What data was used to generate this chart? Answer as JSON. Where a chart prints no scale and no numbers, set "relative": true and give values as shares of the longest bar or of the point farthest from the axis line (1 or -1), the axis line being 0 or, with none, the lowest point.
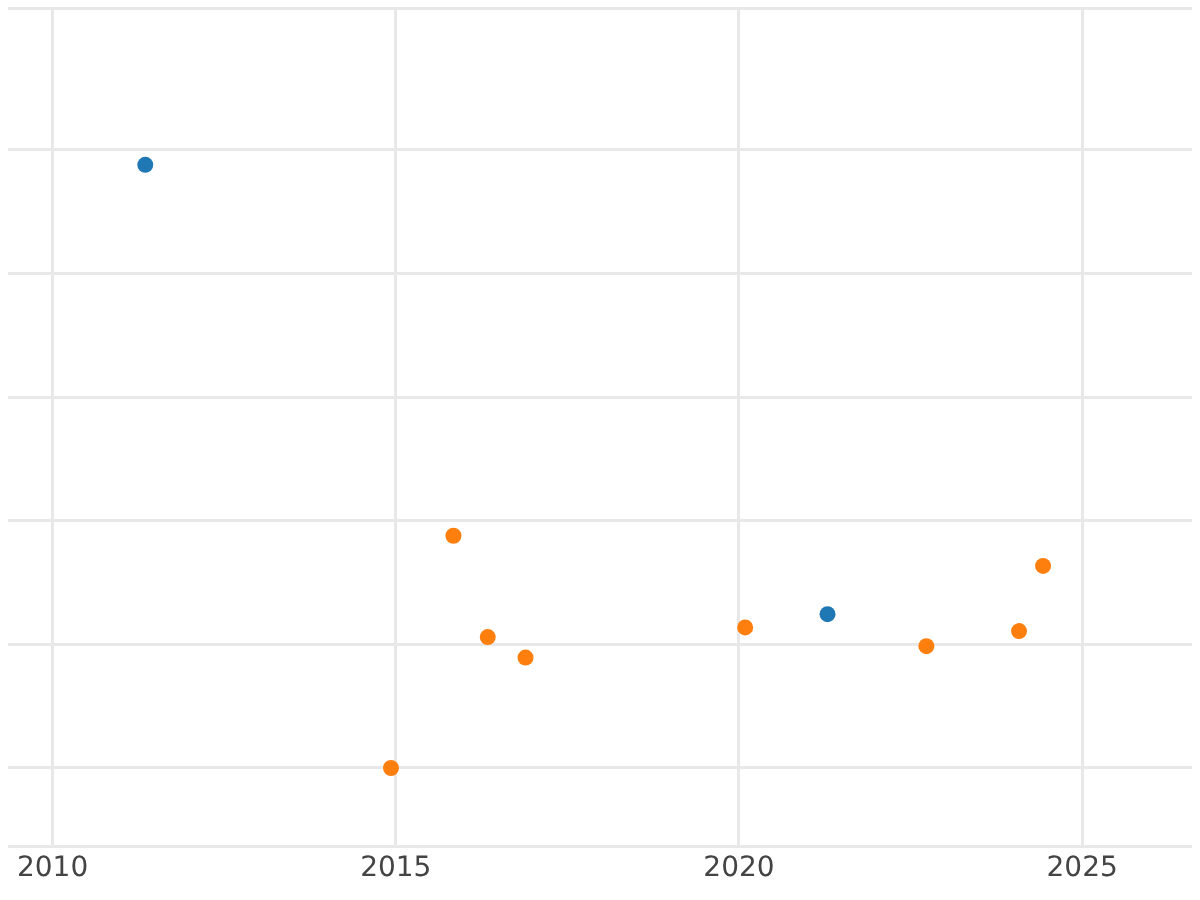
{
  "chart_data": {
    "type": "scatter",
    "relative": true,
    "grid": true,
    "legend": false,
    "marker": "circle",
    "xlim": [
      2009.35,
      2026.6
    ],
    "xticks": [
      2010,
      2015,
      2020,
      2025
    ],
    "series": [
      {
        "color": "#1f77b4",
        "x": [
          2011.35,
          2021.29
        ],
        "values": [
          1,
          0.255
        ]
      },
      {
        "color": "#ff7f0e",
        "x": [
          2014.93,
          2015.84,
          2016.34,
          2016.89,
          2020.09,
          2022.73,
          2024.08,
          2024.43
        ],
        "values": [
          0,
          0.385,
          0.217,
          0.183,
          0.233,
          0.202,
          0.227,
          0.335
        ]
      }
    ]
  }
}
